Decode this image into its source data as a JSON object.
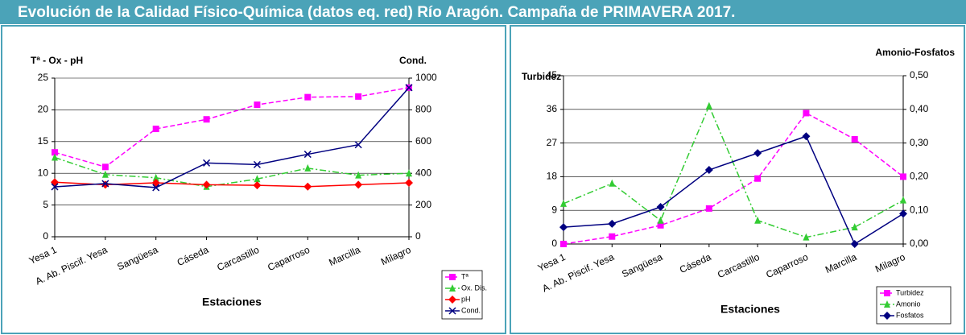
{
  "title": "Evolución de la Calidad Físico-Química (datos eq. red) Río Aragón. Campaña de PRIMAVERA 2017.",
  "chart_data": [
    {
      "type": "line",
      "ylabel": "Tª - Ox - pH",
      "y2label": "Cond.",
      "xlabel": "Estaciones",
      "grid": true,
      "legend": "bottom-right",
      "categories": [
        "Yesa 1",
        "A. Ab. Piscif. Yesa",
        "Sangüesa",
        "Cáseda",
        "Carcastillo",
        "Caparroso",
        "Marcilla",
        "Milagro"
      ],
      "ylim": [
        0,
        25
      ],
      "yticks": [
        0,
        5,
        10,
        15,
        20,
        25
      ],
      "y2lim": [
        0,
        1000
      ],
      "y2ticks": [
        0,
        200,
        400,
        600,
        800,
        1000
      ],
      "series": [
        {
          "name": "Tª",
          "color": "#ff00ff",
          "dash": "dashed",
          "marker": "square",
          "values": [
            13.3,
            11.0,
            17.0,
            18.5,
            20.8,
            22.0,
            22.1,
            23.5
          ]
        },
        {
          "name": "Ox. Dis.",
          "color": "#33cc33",
          "dash": "dashdot",
          "marker": "triangle",
          "values": [
            12.5,
            9.8,
            9.3,
            7.9,
            9.1,
            10.8,
            9.7,
            10.0
          ]
        },
        {
          "name": "pH",
          "color": "#ff0000",
          "dash": "solid",
          "marker": "diamond",
          "values": [
            8.6,
            8.2,
            8.5,
            8.2,
            8.1,
            7.9,
            8.2,
            8.5
          ]
        },
        {
          "name": "Cond.",
          "color": "#000080",
          "dash": "solid",
          "marker": "x",
          "axis": "y2",
          "values": [
            315,
            335,
            310,
            465,
            455,
            520,
            580,
            940
          ]
        }
      ]
    },
    {
      "type": "line",
      "ylabel": "Turbidez",
      "y2label": "Amonio-Fosfatos",
      "xlabel": "Estaciones",
      "grid": true,
      "legend": "bottom-right",
      "categories": [
        "Yesa 1",
        "A. Ab. Piscif. Yesa",
        "Sangüesa",
        "Cáseda",
        "Carcastillo",
        "Caparroso",
        "Marcilla",
        "Milagro"
      ],
      "ylim": [
        0,
        45
      ],
      "yticks": [
        0,
        9,
        18,
        27,
        36,
        45
      ],
      "y2lim": [
        0,
        0.5
      ],
      "y2ticks": [
        {
          "value": 0,
          "label": "0,00"
        },
        {
          "value": 0.1,
          "label": "0,10"
        },
        {
          "value": 0.2,
          "label": "0,20"
        },
        {
          "value": 0.3,
          "label": "0,30"
        },
        {
          "value": 0.4,
          "label": "0,40"
        },
        {
          "value": 0.5,
          "label": "0,50"
        }
      ],
      "series": [
        {
          "name": "Turbidez",
          "color": "#ff00ff",
          "dash": "dashed",
          "marker": "square",
          "values": [
            0,
            2,
            5,
            9.5,
            17.5,
            35,
            28,
            18
          ]
        },
        {
          "name": "Amonio",
          "color": "#33cc33",
          "dash": "dashdot",
          "marker": "triangle",
          "axis": "y2",
          "values": [
            0.12,
            0.18,
            0.07,
            0.41,
            0.07,
            0.02,
            0.05,
            0.13
          ]
        },
        {
          "name": "Fosfatos",
          "color": "#000080",
          "dash": "solid",
          "marker": "diamond",
          "axis": "y2",
          "values": [
            0.05,
            0.06,
            0.11,
            0.22,
            0.27,
            0.32,
            0.0,
            0.09
          ]
        }
      ]
    }
  ]
}
